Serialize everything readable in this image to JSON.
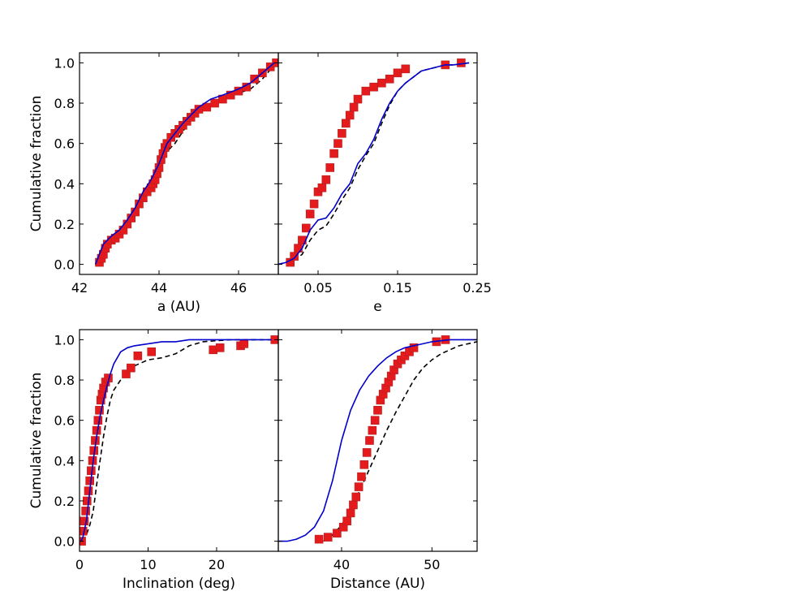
{
  "chart_data": [
    {
      "type": "line",
      "panel": "top-left",
      "title": "",
      "xlabel": "a (AU)",
      "ylabel": "Cumulative fraction",
      "xlim": [
        42,
        47
      ],
      "ylim": [
        -0.05,
        1.05
      ],
      "xticks": [
        42,
        44,
        46
      ],
      "xtick_labels": [
        "42",
        "44",
        "46"
      ],
      "yticks": [
        0.0,
        0.2,
        0.4,
        0.6,
        0.8,
        1.0
      ],
      "ytick_labels": [
        "0.0",
        "0.2",
        "0.4",
        "0.6",
        "0.8",
        "1.0"
      ],
      "series": [
        {
          "name": "model-solid",
          "style": "solid",
          "color": "#0000cc",
          "x": [
            42.4,
            42.5,
            42.6,
            42.8,
            43.0,
            43.2,
            43.4,
            43.6,
            43.8,
            44.0,
            44.2,
            44.4,
            44.6,
            44.8,
            45.0,
            45.3,
            45.6,
            46.0,
            46.3,
            46.6,
            46.9
          ],
          "y": [
            0.0,
            0.05,
            0.1,
            0.14,
            0.17,
            0.22,
            0.28,
            0.36,
            0.42,
            0.5,
            0.6,
            0.65,
            0.7,
            0.74,
            0.78,
            0.82,
            0.84,
            0.87,
            0.9,
            0.95,
            1.0
          ]
        },
        {
          "name": "model-dashed",
          "style": "dashed",
          "color": "#000000",
          "x": [
            42.4,
            42.5,
            42.6,
            42.8,
            43.0,
            43.2,
            43.4,
            43.6,
            43.8,
            44.0,
            44.2,
            44.4,
            44.6,
            44.8,
            45.0,
            45.3,
            45.6,
            46.0,
            46.3,
            46.6,
            46.9
          ],
          "y": [
            0.0,
            0.05,
            0.1,
            0.14,
            0.17,
            0.22,
            0.28,
            0.35,
            0.4,
            0.46,
            0.56,
            0.6,
            0.66,
            0.72,
            0.77,
            0.79,
            0.82,
            0.85,
            0.87,
            0.92,
            0.99
          ]
        },
        {
          "name": "observed",
          "style": "markers",
          "color": "#e41a1c",
          "x": [
            42.5,
            42.55,
            42.6,
            42.65,
            42.7,
            42.8,
            42.9,
            43.0,
            43.1,
            43.2,
            43.3,
            43.4,
            43.5,
            43.6,
            43.7,
            43.8,
            43.85,
            43.9,
            43.95,
            44.0,
            44.05,
            44.1,
            44.15,
            44.2,
            44.3,
            44.4,
            44.5,
            44.6,
            44.7,
            44.8,
            44.9,
            45.0,
            45.2,
            45.4,
            45.6,
            45.8,
            46.0,
            46.2,
            46.4,
            46.6,
            46.8,
            46.95
          ],
          "y": [
            0.01,
            0.03,
            0.05,
            0.08,
            0.1,
            0.12,
            0.13,
            0.15,
            0.17,
            0.2,
            0.23,
            0.26,
            0.3,
            0.33,
            0.36,
            0.38,
            0.4,
            0.42,
            0.45,
            0.48,
            0.52,
            0.55,
            0.58,
            0.6,
            0.63,
            0.65,
            0.67,
            0.69,
            0.71,
            0.73,
            0.75,
            0.77,
            0.78,
            0.8,
            0.82,
            0.84,
            0.86,
            0.88,
            0.92,
            0.95,
            0.98,
            1.0
          ]
        }
      ]
    },
    {
      "type": "line",
      "panel": "top-right",
      "title": "",
      "xlabel": "e",
      "ylabel": "",
      "xlim": [
        0.0,
        0.25
      ],
      "ylim": [
        -0.05,
        1.05
      ],
      "xticks": [
        0.05,
        0.15,
        0.25
      ],
      "xtick_labels": [
        "0.05",
        "0.15",
        "0.25"
      ],
      "yticks": [
        0.0,
        0.2,
        0.4,
        0.6,
        0.8,
        1.0
      ],
      "ytick_labels": [],
      "series": [
        {
          "name": "model-solid",
          "style": "solid",
          "color": "#0000cc",
          "x": [
            0.0,
            0.01,
            0.02,
            0.03,
            0.04,
            0.05,
            0.06,
            0.07,
            0.08,
            0.09,
            0.1,
            0.11,
            0.12,
            0.13,
            0.14,
            0.15,
            0.16,
            0.17,
            0.18,
            0.19,
            0.2,
            0.21,
            0.22,
            0.24
          ],
          "y": [
            0.0,
            0.01,
            0.03,
            0.08,
            0.17,
            0.22,
            0.23,
            0.28,
            0.35,
            0.4,
            0.5,
            0.55,
            0.62,
            0.72,
            0.8,
            0.86,
            0.9,
            0.93,
            0.96,
            0.97,
            0.98,
            0.99,
            0.99,
            1.0
          ]
        },
        {
          "name": "model-dashed",
          "style": "dashed",
          "color": "#000000",
          "x": [
            0.0,
            0.01,
            0.02,
            0.03,
            0.04,
            0.05,
            0.06,
            0.07,
            0.08,
            0.09,
            0.1,
            0.11,
            0.12,
            0.13,
            0.14,
            0.15,
            0.16,
            0.17,
            0.18,
            0.19,
            0.2,
            0.21,
            0.22,
            0.24
          ],
          "y": [
            0.0,
            0.01,
            0.02,
            0.05,
            0.12,
            0.17,
            0.19,
            0.25,
            0.32,
            0.38,
            0.47,
            0.54,
            0.6,
            0.7,
            0.79,
            0.86,
            0.9,
            0.93,
            0.96,
            0.97,
            0.98,
            0.99,
            0.99,
            1.0
          ]
        },
        {
          "name": "observed",
          "style": "markers",
          "color": "#e41a1c",
          "x": [
            0.015,
            0.02,
            0.025,
            0.03,
            0.035,
            0.04,
            0.045,
            0.05,
            0.055,
            0.06,
            0.065,
            0.07,
            0.075,
            0.08,
            0.085,
            0.09,
            0.095,
            0.1,
            0.11,
            0.12,
            0.13,
            0.14,
            0.15,
            0.16,
            0.21,
            0.23
          ],
          "y": [
            0.01,
            0.04,
            0.08,
            0.12,
            0.18,
            0.25,
            0.3,
            0.36,
            0.38,
            0.42,
            0.48,
            0.55,
            0.6,
            0.65,
            0.7,
            0.74,
            0.78,
            0.82,
            0.86,
            0.88,
            0.9,
            0.92,
            0.95,
            0.97,
            0.99,
            1.0
          ]
        }
      ]
    },
    {
      "type": "line",
      "panel": "bottom-left",
      "title": "",
      "xlabel": "Inclination (deg)",
      "ylabel": "Cumulative fraction",
      "xlim": [
        0,
        29
      ],
      "ylim": [
        -0.05,
        1.05
      ],
      "xticks": [
        0,
        10,
        20
      ],
      "xtick_labels": [
        "0",
        "10",
        "20"
      ],
      "yticks": [
        0.0,
        0.2,
        0.4,
        0.6,
        0.8,
        1.0
      ],
      "ytick_labels": [
        "0.0",
        "0.2",
        "0.4",
        "0.6",
        "0.8",
        "1.0"
      ],
      "series": [
        {
          "name": "model-solid",
          "style": "solid",
          "color": "#0000cc",
          "x": [
            0.2,
            0.5,
            1.0,
            1.5,
            2.0,
            2.5,
            3.0,
            3.5,
            4.0,
            4.5,
            5.0,
            6.0,
            7.0,
            8.0,
            10.0,
            12.0,
            14.0,
            16.0,
            18.0,
            22.0,
            28.0
          ],
          "y": [
            0.0,
            0.02,
            0.1,
            0.25,
            0.4,
            0.52,
            0.62,
            0.7,
            0.77,
            0.83,
            0.88,
            0.94,
            0.96,
            0.97,
            0.98,
            0.99,
            0.99,
            1.0,
            1.0,
            1.0,
            1.0
          ]
        },
        {
          "name": "model-dashed",
          "style": "dashed",
          "color": "#000000",
          "x": [
            0.5,
            1.0,
            1.5,
            2.0,
            2.5,
            3.0,
            3.5,
            4.0,
            4.5,
            5.0,
            6.0,
            7.0,
            8.0,
            10.0,
            12.0,
            14.0,
            16.0,
            18.0,
            22.0,
            28.0
          ],
          "y": [
            0.0,
            0.03,
            0.08,
            0.15,
            0.28,
            0.4,
            0.52,
            0.62,
            0.7,
            0.75,
            0.8,
            0.84,
            0.87,
            0.9,
            0.91,
            0.93,
            0.97,
            0.99,
            1.0,
            1.0
          ]
        },
        {
          "name": "observed",
          "style": "markers",
          "color": "#e41a1c",
          "x": [
            0.3,
            0.5,
            0.7,
            0.9,
            1.1,
            1.3,
            1.5,
            1.7,
            1.9,
            2.1,
            2.3,
            2.5,
            2.7,
            2.9,
            3.1,
            3.3,
            3.5,
            3.8,
            4.2,
            6.8,
            7.5,
            8.5,
            10.5,
            19.5,
            20.5,
            23.5,
            24.0,
            28.5
          ],
          "y": [
            0.0,
            0.05,
            0.1,
            0.15,
            0.2,
            0.25,
            0.3,
            0.35,
            0.4,
            0.45,
            0.5,
            0.55,
            0.6,
            0.65,
            0.7,
            0.73,
            0.76,
            0.79,
            0.81,
            0.83,
            0.86,
            0.92,
            0.94,
            0.95,
            0.96,
            0.97,
            0.98,
            1.0
          ]
        }
      ]
    },
    {
      "type": "line",
      "panel": "bottom-right",
      "title": "",
      "xlabel": "Distance (AU)",
      "ylabel": "",
      "xlim": [
        33,
        55
      ],
      "ylim": [
        -0.05,
        1.05
      ],
      "xticks": [
        40,
        50
      ],
      "xtick_labels": [
        "40",
        "50"
      ],
      "yticks": [
        0.0,
        0.2,
        0.4,
        0.6,
        0.8,
        1.0
      ],
      "ytick_labels": [],
      "series": [
        {
          "name": "model-solid",
          "style": "solid",
          "color": "#0000cc",
          "x": [
            33,
            34,
            35,
            36,
            37,
            38,
            39,
            40,
            41,
            42,
            43,
            44,
            45,
            46,
            47,
            48,
            49,
            50,
            52,
            55
          ],
          "y": [
            0.0,
            0.0,
            0.01,
            0.03,
            0.07,
            0.15,
            0.3,
            0.5,
            0.65,
            0.75,
            0.82,
            0.87,
            0.91,
            0.94,
            0.96,
            0.97,
            0.98,
            0.99,
            1.0,
            1.0
          ]
        },
        {
          "name": "model-dashed",
          "style": "dashed",
          "color": "#000000",
          "x": [
            38,
            39,
            40,
            41,
            42,
            43,
            44,
            45,
            46,
            47,
            48,
            49,
            50,
            51,
            52,
            53,
            55
          ],
          "y": [
            0.0,
            0.03,
            0.08,
            0.15,
            0.25,
            0.35,
            0.45,
            0.55,
            0.64,
            0.72,
            0.8,
            0.86,
            0.9,
            0.93,
            0.95,
            0.97,
            0.99
          ]
        },
        {
          "name": "observed",
          "style": "markers",
          "color": "#e41a1c",
          "x": [
            37.5,
            38.5,
            39.5,
            40.2,
            40.6,
            41.0,
            41.3,
            41.6,
            41.9,
            42.2,
            42.5,
            42.8,
            43.1,
            43.4,
            43.7,
            44.0,
            44.3,
            44.6,
            44.9,
            45.2,
            45.5,
            45.8,
            46.2,
            46.6,
            47.0,
            47.5,
            48.0,
            50.5,
            51.5
          ],
          "y": [
            0.01,
            0.02,
            0.04,
            0.07,
            0.1,
            0.14,
            0.18,
            0.22,
            0.27,
            0.32,
            0.38,
            0.44,
            0.5,
            0.55,
            0.6,
            0.65,
            0.7,
            0.73,
            0.76,
            0.79,
            0.82,
            0.85,
            0.88,
            0.9,
            0.92,
            0.94,
            0.96,
            0.99,
            1.0
          ]
        }
      ]
    }
  ]
}
